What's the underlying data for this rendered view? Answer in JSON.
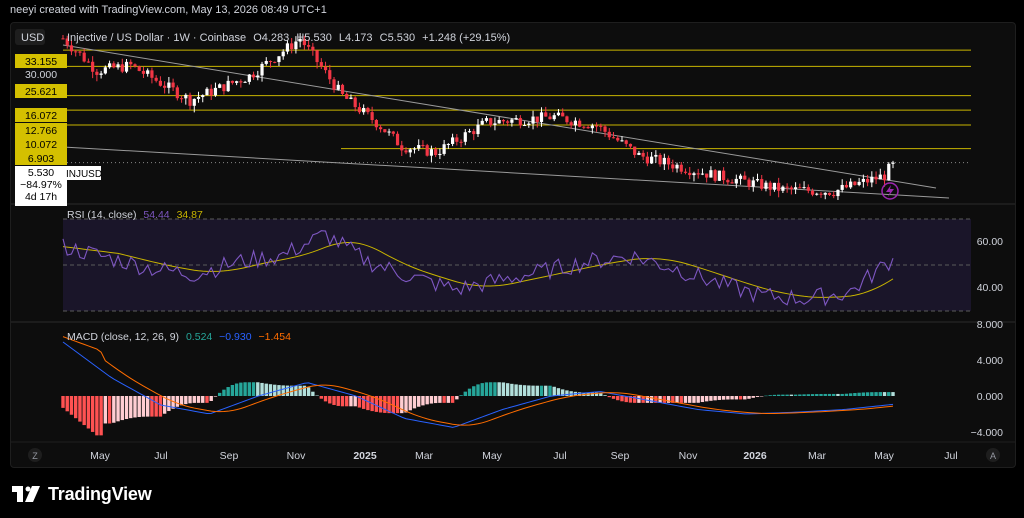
{
  "caption": "neeyi created with TradingView.com, May 13, 2026 08:49 UTC+1",
  "header": {
    "currency_button": "USD",
    "symbol": "Injective / US Dollar · 1W · Coinbase",
    "o_label": "O",
    "o_value": "4.283",
    "h_label": "H",
    "h_value": "5.530",
    "l_label": "L",
    "l_value": "4.173",
    "c_label": "C",
    "c_value": "5.530",
    "change": "+1.248 (+29.15%)"
  },
  "price_axis_labels": [
    "33.155",
    "30.000",
    "25.621",
    "16.072",
    "12.766",
    "10.072",
    "6.903"
  ],
  "current_price": {
    "value": "5.530",
    "change": "−84.97%",
    "countdown": "4d 17h",
    "ticker": "INJUSD"
  },
  "rsi": {
    "label": "RSI (14, close)",
    "value1": "54.44",
    "value2": "34.87",
    "axis": [
      "60.00",
      "40.00"
    ]
  },
  "macd": {
    "label": "MACD (close, 12, 26, 9)",
    "value1": "0.524",
    "value2": "−0.930",
    "value3": "−1.454",
    "axis": [
      "8.000",
      "4.000",
      "0.000",
      "−4.000"
    ]
  },
  "time_axis": [
    "May",
    "Jul",
    "Sep",
    "Nov",
    "2025",
    "Mar",
    "May",
    "Jul",
    "Sep",
    "Nov",
    "2026",
    "Mar",
    "May",
    "Jul"
  ],
  "footer_brand": "TradingView",
  "colors": {
    "up": "#ffffff",
    "down": "#f23645",
    "hline": "#c8b400",
    "rsi": "#7e57c2",
    "rsi_ma": "#c8b400",
    "macd": "#2962ff",
    "signal": "#ff6d00",
    "hist_pos": "#26a69a",
    "hist_neg": "#ff5252"
  },
  "chart_data": {
    "type": "candlestick",
    "title": "Injective / US Dollar · 1W · Coinbase",
    "ylim": [
      3,
      45
    ],
    "y_scale": "log",
    "horizontal_levels": [
      33.155,
      25.621,
      16.072,
      12.766,
      10.072,
      6.903
    ],
    "last_close": 5.53,
    "series": [
      {
        "name": "INJUSD",
        "anchors": [
          [
            0,
            40
          ],
          [
            8,
            24
          ],
          [
            16,
            26
          ],
          [
            30,
            15
          ],
          [
            44,
            22
          ],
          [
            56,
            40
          ],
          [
            66,
            16
          ],
          [
            74,
            10.5
          ],
          [
            80,
            7.2
          ],
          [
            88,
            6.5
          ],
          [
            100,
            10.5
          ],
          [
            116,
            11.5
          ],
          [
            126,
            10
          ],
          [
            136,
            6.2
          ],
          [
            150,
            4.8
          ],
          [
            170,
            3.6
          ],
          [
            182,
            3.5
          ],
          [
            194,
            4.5
          ],
          [
            196,
            5.53
          ]
        ]
      },
      {
        "name": "RSI (14, close)",
        "values_hint": [
          62,
          55,
          48,
          44,
          52,
          56,
          70,
          52,
          42,
          34,
          40,
          46,
          52,
          56,
          48,
          38,
          30,
          28,
          32,
          54.44
        ]
      },
      {
        "name": "MACD (close, 12, 26, 9)",
        "values_hint": [
          6,
          2,
          -1,
          -2,
          0,
          1.5,
          0,
          -2.5,
          -3.5,
          -1.5,
          0,
          0.5,
          -0.5,
          -1.5,
          -2,
          -1.8,
          -1.5,
          -0.93
        ]
      }
    ]
  }
}
